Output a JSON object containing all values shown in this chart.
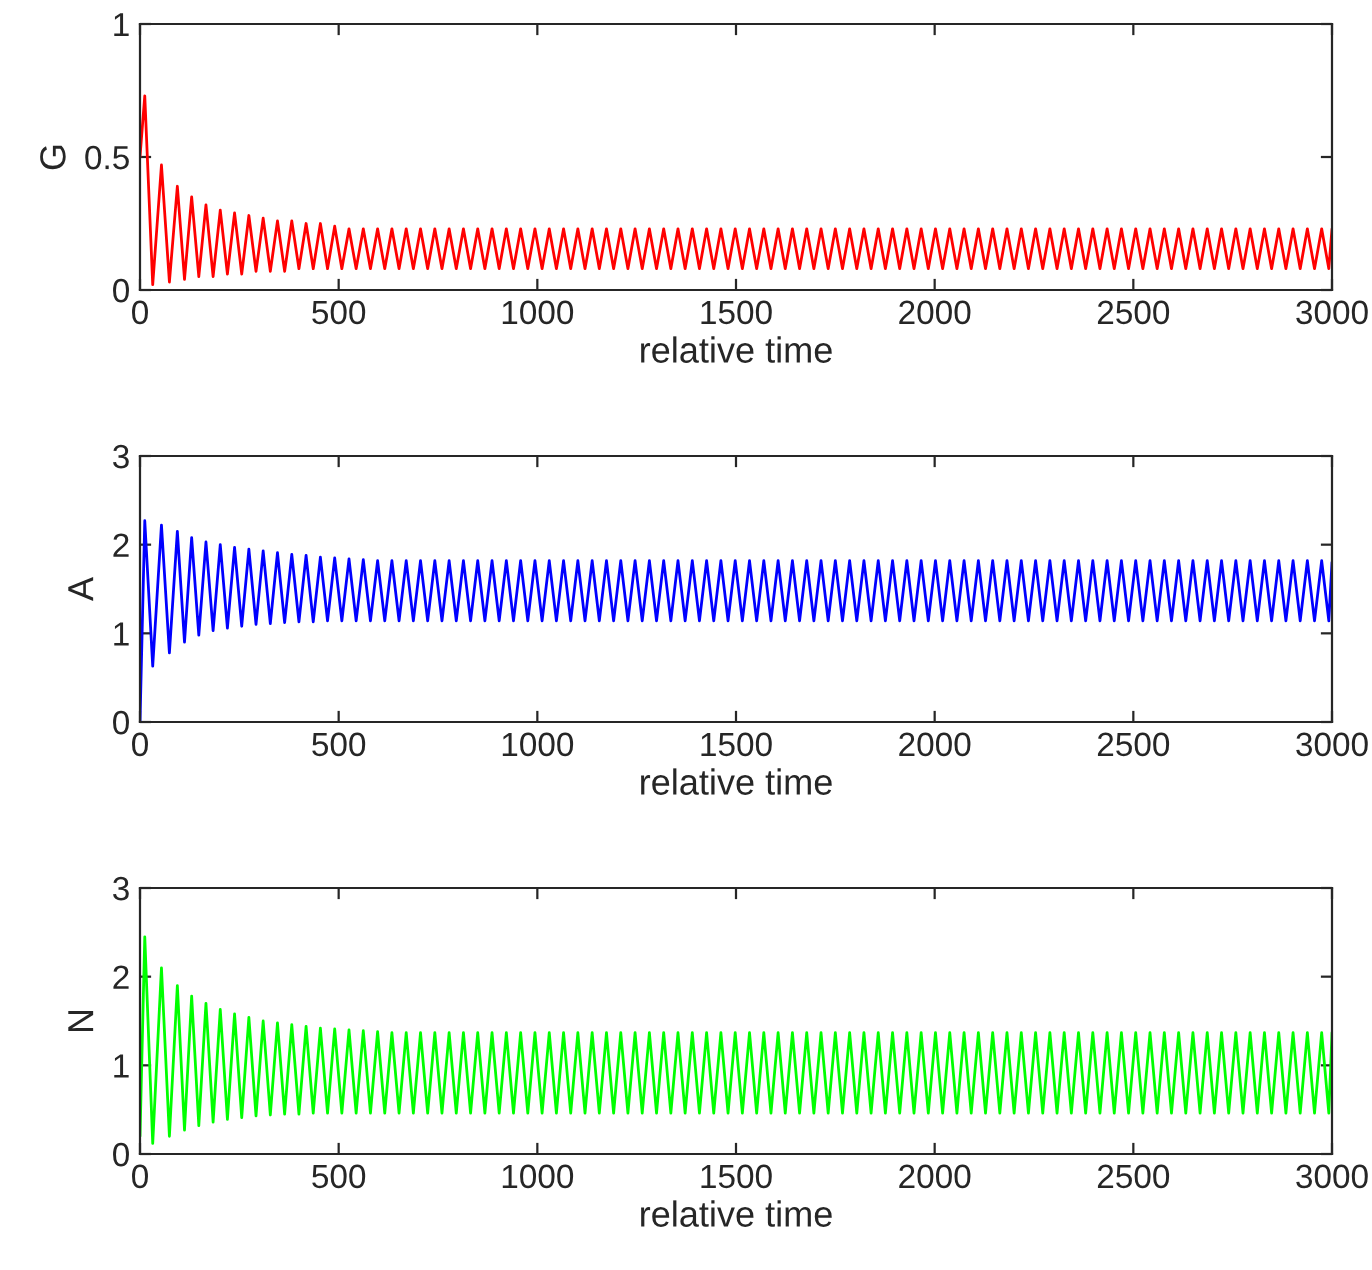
{
  "chart_data": [
    {
      "type": "line",
      "xlabel": "relative time",
      "ylabel": "G",
      "xlim": [
        0,
        3000
      ],
      "ylim": [
        0,
        1
      ],
      "xticks": [
        0,
        500,
        1000,
        1500,
        2000,
        2500,
        3000
      ],
      "yticks": [
        0,
        0.5,
        1
      ],
      "x": [
        0,
        12,
        32,
        54,
        74,
        94,
        112,
        130,
        148,
        166,
        184,
        202,
        220,
        238,
        256,
        274,
        292,
        310,
        328,
        346,
        364,
        382,
        400,
        418,
        436,
        454,
        472,
        490,
        508,
        526,
        544,
        562,
        580,
        598,
        616,
        634,
        652,
        670,
        688,
        706,
        724,
        742,
        760,
        778,
        796,
        814,
        832,
        850,
        868,
        886,
        904,
        922,
        940,
        958,
        976,
        994,
        1012,
        1030,
        1048,
        1066,
        1084,
        1102,
        1120,
        1138,
        1156,
        1174,
        1192,
        1210,
        1228,
        1246,
        1264,
        1282,
        1300,
        1318,
        1336,
        1354,
        1372,
        1390,
        1408,
        1426,
        1444,
        1462,
        1480,
        1498,
        1516,
        1534,
        1552,
        1570,
        1588,
        1606,
        1624,
        1642,
        1660,
        1678,
        1696,
        1714,
        1732,
        1750,
        1768,
        1786,
        1804,
        1822,
        1840,
        1858,
        1876,
        1894,
        1912,
        1930,
        1948,
        1966,
        1984,
        2002,
        2020,
        2038,
        2056,
        2074,
        2092,
        2110,
        2128,
        2146,
        2164,
        2182,
        2200,
        2218,
        2236,
        2254,
        2272,
        2290,
        2308,
        2326,
        2344,
        2362,
        2380,
        2398,
        2416,
        2434,
        2452,
        2470,
        2488,
        2506,
        2524,
        2542,
        2560,
        2578,
        2596,
        2614,
        2632,
        2650,
        2668,
        2686,
        2704,
        2722,
        2740,
        2758,
        2776,
        2794,
        2812,
        2830,
        2848,
        2866,
        2884,
        2902,
        2920,
        2938,
        2956,
        2974,
        2992,
        3000
      ],
      "series": [
        {
          "color": "#ff0000",
          "values": [
            0.5,
            0.73,
            0.02,
            0.47,
            0.03,
            0.39,
            0.04,
            0.35,
            0.05,
            0.32,
            0.05,
            0.3,
            0.06,
            0.29,
            0.06,
            0.28,
            0.07,
            0.27,
            0.07,
            0.26,
            0.07,
            0.26,
            0.08,
            0.25,
            0.08,
            0.25,
            0.08,
            0.24,
            0.08,
            0.23,
            0.08,
            0.23,
            0.08,
            0.23,
            0.08,
            0.23,
            0.08,
            0.23,
            0.08,
            0.23,
            0.08,
            0.23,
            0.08,
            0.23,
            0.08,
            0.23,
            0.08,
            0.23,
            0.08,
            0.23,
            0.08,
            0.23,
            0.08,
            0.23,
            0.08,
            0.23,
            0.08,
            0.23,
            0.08,
            0.23,
            0.08,
            0.23,
            0.08,
            0.23,
            0.08,
            0.23,
            0.08,
            0.23,
            0.08,
            0.23,
            0.08,
            0.23,
            0.08,
            0.23,
            0.08,
            0.23,
            0.08,
            0.23,
            0.08,
            0.23,
            0.08,
            0.23,
            0.08,
            0.23,
            0.08,
            0.23,
            0.08,
            0.23,
            0.08,
            0.23,
            0.08,
            0.23,
            0.08,
            0.23,
            0.08,
            0.23,
            0.08,
            0.23,
            0.08,
            0.23,
            0.08,
            0.23,
            0.08,
            0.23,
            0.08,
            0.23,
            0.08,
            0.23,
            0.08,
            0.23,
            0.08,
            0.23,
            0.08,
            0.23,
            0.08,
            0.23,
            0.08,
            0.23,
            0.08,
            0.23,
            0.08,
            0.23,
            0.08,
            0.23,
            0.08,
            0.23,
            0.08,
            0.23,
            0.08,
            0.23,
            0.08,
            0.23,
            0.08,
            0.23,
            0.08,
            0.23,
            0.08,
            0.23,
            0.08,
            0.23,
            0.08,
            0.23,
            0.08,
            0.23,
            0.08,
            0.23,
            0.08,
            0.23,
            0.08,
            0.23,
            0.08,
            0.23,
            0.08,
            0.23,
            0.08,
            0.23,
            0.08,
            0.23,
            0.08,
            0.23,
            0.08,
            0.23,
            0.08,
            0.23,
            0.08,
            0.23,
            0.08,
            0.23
          ]
        }
      ]
    },
    {
      "type": "line",
      "xlabel": "relative time",
      "ylabel": "A",
      "xlim": [
        0,
        3000
      ],
      "ylim": [
        0,
        3
      ],
      "xticks": [
        0,
        500,
        1000,
        1500,
        2000,
        2500,
        3000
      ],
      "yticks": [
        0,
        1,
        2,
        3
      ],
      "x": [
        0,
        12,
        32,
        54,
        74,
        94,
        112,
        130,
        148,
        166,
        184,
        202,
        220,
        238,
        256,
        274,
        292,
        310,
        328,
        346,
        364,
        382,
        400,
        418,
        436,
        454,
        472,
        490,
        508,
        526,
        544,
        562,
        580,
        598,
        616,
        634,
        652,
        670,
        688,
        706,
        724,
        742,
        760,
        778,
        796,
        814,
        832,
        850,
        868,
        886,
        904,
        922,
        940,
        958,
        976,
        994,
        1012,
        1030,
        1048,
        1066,
        1084,
        1102,
        1120,
        1138,
        1156,
        1174,
        1192,
        1210,
        1228,
        1246,
        1264,
        1282,
        1300,
        1318,
        1336,
        1354,
        1372,
        1390,
        1408,
        1426,
        1444,
        1462,
        1480,
        1498,
        1516,
        1534,
        1552,
        1570,
        1588,
        1606,
        1624,
        1642,
        1660,
        1678,
        1696,
        1714,
        1732,
        1750,
        1768,
        1786,
        1804,
        1822,
        1840,
        1858,
        1876,
        1894,
        1912,
        1930,
        1948,
        1966,
        1984,
        2002,
        2020,
        2038,
        2056,
        2074,
        2092,
        2110,
        2128,
        2146,
        2164,
        2182,
        2200,
        2218,
        2236,
        2254,
        2272,
        2290,
        2308,
        2326,
        2344,
        2362,
        2380,
        2398,
        2416,
        2434,
        2452,
        2470,
        2488,
        2506,
        2524,
        2542,
        2560,
        2578,
        2596,
        2614,
        2632,
        2650,
        2668,
        2686,
        2704,
        2722,
        2740,
        2758,
        2776,
        2794,
        2812,
        2830,
        2848,
        2866,
        2884,
        2902,
        2920,
        2938,
        2956,
        2974,
        2992,
        3000
      ],
      "series": [
        {
          "color": "#0000ff",
          "values": [
            0,
            2.27,
            0.63,
            2.22,
            0.78,
            2.15,
            0.9,
            2.08,
            0.98,
            2.03,
            1.03,
            2.0,
            1.06,
            1.97,
            1.08,
            1.95,
            1.1,
            1.93,
            1.11,
            1.91,
            1.12,
            1.89,
            1.13,
            1.88,
            1.13,
            1.86,
            1.14,
            1.85,
            1.14,
            1.84,
            1.14,
            1.83,
            1.14,
            1.82,
            1.14,
            1.82,
            1.14,
            1.82,
            1.14,
            1.82,
            1.14,
            1.82,
            1.14,
            1.82,
            1.14,
            1.82,
            1.14,
            1.82,
            1.14,
            1.82,
            1.14,
            1.82,
            1.14,
            1.82,
            1.14,
            1.82,
            1.14,
            1.82,
            1.14,
            1.82,
            1.14,
            1.82,
            1.14,
            1.82,
            1.14,
            1.82,
            1.14,
            1.82,
            1.14,
            1.82,
            1.14,
            1.82,
            1.14,
            1.82,
            1.14,
            1.82,
            1.14,
            1.82,
            1.14,
            1.82,
            1.14,
            1.82,
            1.14,
            1.82,
            1.14,
            1.82,
            1.14,
            1.82,
            1.14,
            1.82,
            1.14,
            1.82,
            1.14,
            1.82,
            1.14,
            1.82,
            1.14,
            1.82,
            1.14,
            1.82,
            1.14,
            1.82,
            1.14,
            1.82,
            1.14,
            1.82,
            1.14,
            1.82,
            1.14,
            1.82,
            1.14,
            1.82,
            1.14,
            1.82,
            1.14,
            1.82,
            1.14,
            1.82,
            1.14,
            1.82,
            1.14,
            1.82,
            1.14,
            1.82,
            1.14,
            1.82,
            1.14,
            1.82,
            1.14,
            1.82,
            1.14,
            1.82,
            1.14,
            1.82,
            1.14,
            1.82,
            1.14,
            1.82,
            1.14,
            1.82,
            1.14,
            1.82,
            1.14,
            1.82,
            1.14,
            1.82,
            1.14,
            1.82,
            1.14,
            1.82,
            1.14,
            1.82,
            1.14,
            1.82,
            1.14,
            1.82,
            1.14,
            1.82,
            1.14,
            1.82,
            1.14,
            1.82,
            1.14,
            1.82,
            1.14,
            1.82,
            1.14,
            1.8
          ]
        }
      ]
    },
    {
      "type": "line",
      "xlabel": "relative time",
      "ylabel": "N",
      "xlim": [
        0,
        3000
      ],
      "ylim": [
        0,
        3
      ],
      "xticks": [
        0,
        500,
        1000,
        1500,
        2000,
        2500,
        3000
      ],
      "yticks": [
        0,
        1,
        2,
        3
      ],
      "x": [
        0,
        12,
        32,
        54,
        74,
        94,
        112,
        130,
        148,
        166,
        184,
        202,
        220,
        238,
        256,
        274,
        292,
        310,
        328,
        346,
        364,
        382,
        400,
        418,
        436,
        454,
        472,
        490,
        508,
        526,
        544,
        562,
        580,
        598,
        616,
        634,
        652,
        670,
        688,
        706,
        724,
        742,
        760,
        778,
        796,
        814,
        832,
        850,
        868,
        886,
        904,
        922,
        940,
        958,
        976,
        994,
        1012,
        1030,
        1048,
        1066,
        1084,
        1102,
        1120,
        1138,
        1156,
        1174,
        1192,
        1210,
        1228,
        1246,
        1264,
        1282,
        1300,
        1318,
        1336,
        1354,
        1372,
        1390,
        1408,
        1426,
        1444,
        1462,
        1480,
        1498,
        1516,
        1534,
        1552,
        1570,
        1588,
        1606,
        1624,
        1642,
        1660,
        1678,
        1696,
        1714,
        1732,
        1750,
        1768,
        1786,
        1804,
        1822,
        1840,
        1858,
        1876,
        1894,
        1912,
        1930,
        1948,
        1966,
        1984,
        2002,
        2020,
        2038,
        2056,
        2074,
        2092,
        2110,
        2128,
        2146,
        2164,
        2182,
        2200,
        2218,
        2236,
        2254,
        2272,
        2290,
        2308,
        2326,
        2344,
        2362,
        2380,
        2398,
        2416,
        2434,
        2452,
        2470,
        2488,
        2506,
        2524,
        2542,
        2560,
        2578,
        2596,
        2614,
        2632,
        2650,
        2668,
        2686,
        2704,
        2722,
        2740,
        2758,
        2776,
        2794,
        2812,
        2830,
        2848,
        2866,
        2884,
        2902,
        2920,
        2938,
        2956,
        2974,
        2992,
        3000
      ],
      "series": [
        {
          "color": "#00ff00",
          "values": [
            0.2,
            2.45,
            0.12,
            2.1,
            0.2,
            1.9,
            0.27,
            1.78,
            0.32,
            1.7,
            0.36,
            1.63,
            0.39,
            1.58,
            0.41,
            1.54,
            0.43,
            1.5,
            0.44,
            1.48,
            0.45,
            1.46,
            0.45,
            1.44,
            0.46,
            1.42,
            0.46,
            1.41,
            0.46,
            1.4,
            0.46,
            1.39,
            0.46,
            1.38,
            0.46,
            1.37,
            0.46,
            1.37,
            0.46,
            1.37,
            0.46,
            1.37,
            0.46,
            1.37,
            0.46,
            1.37,
            0.46,
            1.37,
            0.46,
            1.37,
            0.46,
            1.37,
            0.46,
            1.37,
            0.46,
            1.37,
            0.46,
            1.37,
            0.46,
            1.37,
            0.46,
            1.37,
            0.46,
            1.37,
            0.46,
            1.37,
            0.46,
            1.37,
            0.46,
            1.37,
            0.46,
            1.37,
            0.46,
            1.37,
            0.46,
            1.37,
            0.46,
            1.37,
            0.46,
            1.37,
            0.46,
            1.37,
            0.46,
            1.37,
            0.46,
            1.37,
            0.46,
            1.37,
            0.46,
            1.37,
            0.46,
            1.37,
            0.46,
            1.37,
            0.46,
            1.37,
            0.46,
            1.37,
            0.46,
            1.37,
            0.46,
            1.37,
            0.46,
            1.37,
            0.46,
            1.37,
            0.46,
            1.37,
            0.46,
            1.37,
            0.46,
            1.37,
            0.46,
            1.37,
            0.46,
            1.37,
            0.46,
            1.37,
            0.46,
            1.37,
            0.46,
            1.37,
            0.46,
            1.37,
            0.46,
            1.37,
            0.46,
            1.37,
            0.46,
            1.37,
            0.46,
            1.37,
            0.46,
            1.37,
            0.46,
            1.37,
            0.46,
            1.37,
            0.46,
            1.37,
            0.46,
            1.37,
            0.46,
            1.37,
            0.46,
            1.37,
            0.46,
            1.37,
            0.46,
            1.37,
            0.46,
            1.37,
            0.46,
            1.37,
            0.46,
            1.37,
            0.46,
            1.37,
            0.46,
            1.37,
            0.46,
            1.37,
            0.46,
            1.37,
            0.46,
            1.37,
            0.46,
            1.37
          ]
        }
      ]
    }
  ]
}
